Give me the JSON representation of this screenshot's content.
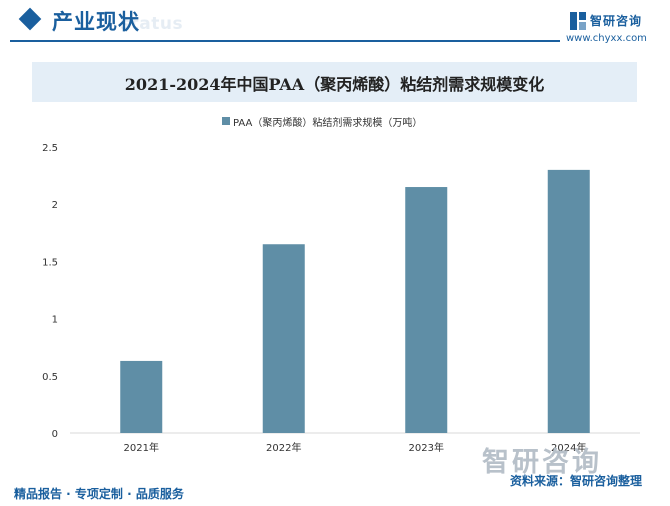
{
  "header": {
    "section_title": "产业现状",
    "section_title_en": "status",
    "brand_name": "智研咨询",
    "brand_url": "www.chyxx.com"
  },
  "chart_data": {
    "type": "bar",
    "title": "2021-2024年中国PAA（聚丙烯酸）粘结剂需求规模变化",
    "categories": [
      "2021年",
      "2022年",
      "2023年",
      "2024年"
    ],
    "series": [
      {
        "name": "PAA（聚丙烯酸）粘结剂需求规模（万吨）",
        "values": [
          0.63,
          1.65,
          2.15,
          2.3
        ]
      }
    ],
    "y_ticks": [
      "0",
      "0.5",
      "1",
      "1.5",
      "2",
      "2.5"
    ],
    "ylim": [
      0,
      2.5
    ],
    "grid": false,
    "legend_position": "top-center",
    "color": "#5f8ea6"
  },
  "watermark": {
    "text": "智研咨询"
  },
  "footer": {
    "left": "精品报告 · 专项定制 · 品质服务",
    "source": "资料来源：智研咨询整理"
  }
}
